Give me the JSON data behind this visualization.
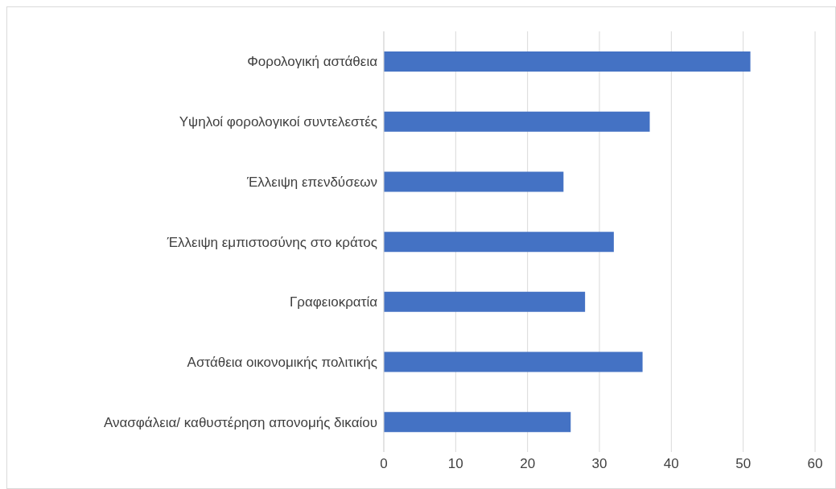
{
  "chart_data": {
    "type": "bar",
    "orientation": "horizontal",
    "categories": [
      "Φορολογική αστάθεια",
      "Υψηλοί φορολογικοί συντελεστές",
      "Έλλειψη επενδύσεων",
      "Έλλειψη εμπιστοσύνης στο κράτος",
      "Γραφειοκρατία",
      "Αστάθεια οικονομικής πολιτικής",
      "Ανασφάλεια/ καθυστέρηση απονομής δικαίου"
    ],
    "values": [
      51,
      37,
      25,
      32,
      28,
      36,
      26
    ],
    "color": "#4472c4",
    "xlim": [
      0,
      60
    ],
    "xticks": [
      0,
      10,
      20,
      30,
      40,
      50,
      60
    ],
    "grid": "x"
  }
}
